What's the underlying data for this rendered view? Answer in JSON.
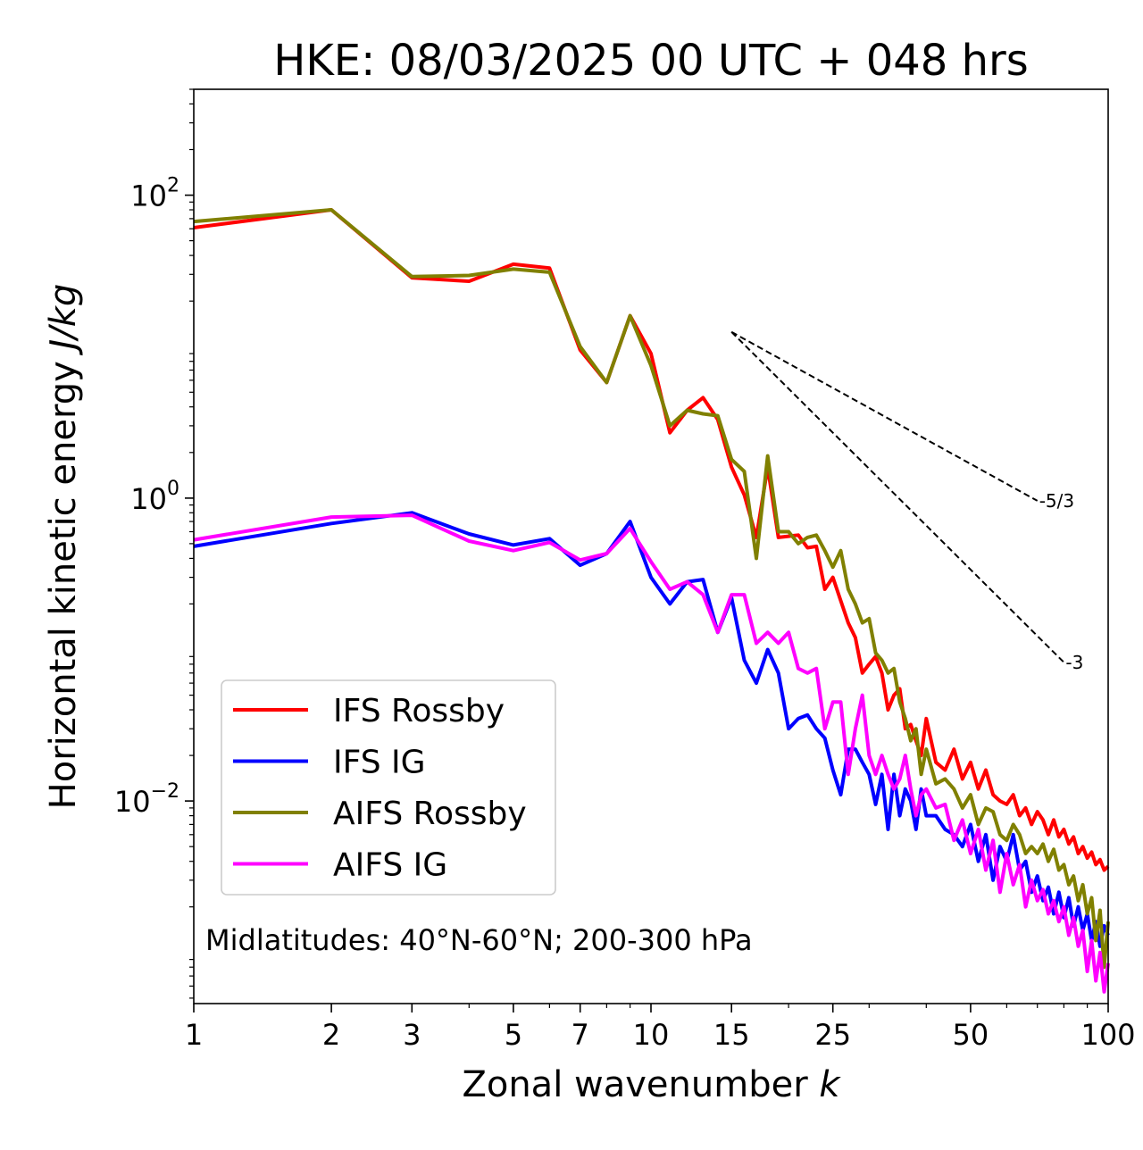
{
  "chart_data": {
    "type": "line",
    "title": "HKE: 08/03/2025 00 UTC + 048 hrs",
    "xlabel": "Zonal wavenumber ",
    "xlabel_var": "k",
    "ylabel": "Horizontal kinetic energy ",
    "ylabel_unit": "J/kg",
    "xscale": "log",
    "yscale": "log",
    "xlim": [
      1,
      100
    ],
    "ylim": [
      0.00046,
      500
    ],
    "x_ticks": [
      1,
      2,
      3,
      5,
      7,
      10,
      15,
      25,
      50,
      100
    ],
    "x_tick_labels": [
      "1",
      "2",
      "3",
      "5",
      "7",
      "10",
      "15",
      "25",
      "50",
      "100"
    ],
    "y_ticks": [
      0.01,
      1,
      100
    ],
    "y_tick_labels": [
      {
        "base": "10",
        "exp": "−2"
      },
      {
        "base": "10",
        "exp": "0"
      },
      {
        "base": "10",
        "exp": "2"
      }
    ],
    "legend_position": "lower-left",
    "annotation": "Midlatitudes: 40°N-60°N; 200-300 hPa",
    "reference_lines": [
      {
        "label": "-5/3",
        "slope": -1.6667,
        "x": [
          15,
          70
        ],
        "y0": 12.5
      },
      {
        "label": "-3",
        "slope": -3,
        "x": [
          15,
          80
        ],
        "y0": 12.5
      }
    ],
    "series": [
      {
        "name": "IFS Rossby",
        "color": "#ff0000",
        "x": [
          1,
          2,
          3,
          4,
          5,
          6,
          7,
          8,
          9,
          10,
          11,
          12,
          13,
          14,
          15,
          16,
          17,
          18,
          19,
          20,
          21,
          22,
          23,
          24,
          25,
          26,
          27,
          28,
          29,
          30,
          31,
          32,
          33,
          34,
          35,
          36,
          37,
          38,
          39,
          40,
          42,
          44,
          46,
          48,
          50,
          52,
          54,
          56,
          58,
          60,
          62,
          64,
          66,
          68,
          70,
          72,
          74,
          76,
          78,
          80,
          82,
          84,
          86,
          88,
          90,
          92,
          94,
          96,
          98,
          100
        ],
        "y": [
          61,
          80,
          28.5,
          27,
          35,
          33,
          9.5,
          5.8,
          16,
          9,
          2.7,
          3.8,
          4.6,
          3.3,
          1.6,
          1.05,
          0.55,
          1.6,
          0.55,
          0.56,
          0.57,
          0.47,
          0.48,
          0.25,
          0.3,
          0.21,
          0.15,
          0.12,
          0.07,
          0.08,
          0.09,
          0.07,
          0.04,
          0.05,
          0.055,
          0.03,
          0.032,
          0.025,
          0.02,
          0.035,
          0.018,
          0.016,
          0.022,
          0.014,
          0.018,
          0.012,
          0.016,
          0.011,
          0.01,
          0.0095,
          0.011,
          0.008,
          0.009,
          0.007,
          0.0085,
          0.0075,
          0.006,
          0.0075,
          0.0058,
          0.0065,
          0.0052,
          0.0058,
          0.0045,
          0.005,
          0.0042,
          0.0046,
          0.0038,
          0.0041,
          0.0035,
          0.0037
        ]
      },
      {
        "name": "IFS IG",
        "color": "#0000ff",
        "x": [
          1,
          2,
          3,
          4,
          5,
          6,
          7,
          8,
          9,
          10,
          11,
          12,
          13,
          14,
          15,
          16,
          17,
          18,
          19,
          20,
          21,
          22,
          23,
          24,
          25,
          26,
          27,
          28,
          29,
          30,
          31,
          32,
          33,
          34,
          35,
          36,
          37,
          38,
          39,
          40,
          42,
          44,
          46,
          48,
          50,
          52,
          54,
          56,
          58,
          60,
          62,
          64,
          66,
          68,
          70,
          72,
          74,
          76,
          78,
          80,
          82,
          84,
          86,
          88,
          90,
          92,
          94,
          96,
          98,
          100
        ],
        "y": [
          0.48,
          0.68,
          0.8,
          0.58,
          0.49,
          0.54,
          0.36,
          0.43,
          0.7,
          0.3,
          0.2,
          0.28,
          0.29,
          0.13,
          0.22,
          0.085,
          0.06,
          0.1,
          0.07,
          0.03,
          0.035,
          0.037,
          0.03,
          0.026,
          0.016,
          0.011,
          0.022,
          0.022,
          0.018,
          0.015,
          0.0095,
          0.015,
          0.0065,
          0.015,
          0.008,
          0.012,
          0.01,
          0.0065,
          0.012,
          0.008,
          0.008,
          0.0065,
          0.006,
          0.005,
          0.007,
          0.004,
          0.006,
          0.003,
          0.005,
          0.004,
          0.006,
          0.0035,
          0.004,
          0.0025,
          0.0032,
          0.0022,
          0.0027,
          0.0018,
          0.0025,
          0.0017,
          0.0023,
          0.0015,
          0.002,
          0.0014,
          0.0018,
          0.0012,
          0.0016,
          0.0011,
          0.0015,
          0.0013
        ]
      },
      {
        "name": "AIFS Rossby",
        "color": "#808000",
        "x": [
          1,
          2,
          3,
          4,
          5,
          6,
          7,
          8,
          9,
          10,
          11,
          12,
          13,
          14,
          15,
          16,
          17,
          18,
          19,
          20,
          21,
          22,
          23,
          24,
          25,
          26,
          27,
          28,
          29,
          30,
          31,
          32,
          33,
          34,
          35,
          36,
          37,
          38,
          39,
          40,
          42,
          44,
          46,
          48,
          50,
          52,
          54,
          56,
          58,
          60,
          62,
          64,
          66,
          68,
          70,
          72,
          74,
          76,
          78,
          80,
          82,
          84,
          86,
          88,
          90,
          92,
          94,
          96,
          98,
          100
        ],
        "y": [
          67,
          80,
          29,
          29.5,
          32.5,
          31,
          10,
          5.8,
          16,
          7.5,
          3,
          3.8,
          3.6,
          3.5,
          1.8,
          1.5,
          0.4,
          1.9,
          0.6,
          0.6,
          0.5,
          0.55,
          0.57,
          0.45,
          0.35,
          0.45,
          0.25,
          0.2,
          0.15,
          0.16,
          0.095,
          0.085,
          0.07,
          0.075,
          0.045,
          0.035,
          0.025,
          0.03,
          0.015,
          0.022,
          0.013,
          0.014,
          0.012,
          0.009,
          0.011,
          0.007,
          0.009,
          0.0085,
          0.006,
          0.0055,
          0.007,
          0.006,
          0.0045,
          0.005,
          0.0045,
          0.0052,
          0.004,
          0.0048,
          0.0035,
          0.0038,
          0.0028,
          0.0032,
          0.0022,
          0.0028,
          0.0018,
          0.0023,
          0.0012,
          0.0019,
          0.0008,
          0.0016
        ]
      },
      {
        "name": "AIFS IG",
        "color": "#ff00ff",
        "x": [
          1,
          2,
          3,
          4,
          5,
          6,
          7,
          8,
          9,
          10,
          11,
          12,
          13,
          14,
          15,
          16,
          17,
          18,
          19,
          20,
          21,
          22,
          23,
          24,
          25,
          26,
          27,
          28,
          29,
          30,
          31,
          32,
          33,
          34,
          35,
          36,
          37,
          38,
          39,
          40,
          42,
          44,
          46,
          48,
          50,
          52,
          54,
          56,
          58,
          60,
          62,
          64,
          66,
          68,
          70,
          72,
          74,
          76,
          78,
          80,
          82,
          84,
          86,
          88,
          90,
          92,
          94,
          96,
          98,
          100
        ],
        "y": [
          0.53,
          0.75,
          0.77,
          0.52,
          0.45,
          0.51,
          0.39,
          0.43,
          0.63,
          0.38,
          0.25,
          0.28,
          0.23,
          0.13,
          0.23,
          0.23,
          0.11,
          0.13,
          0.11,
          0.13,
          0.075,
          0.07,
          0.075,
          0.03,
          0.045,
          0.045,
          0.015,
          0.03,
          0.05,
          0.02,
          0.015,
          0.02,
          0.015,
          0.012,
          0.014,
          0.02,
          0.012,
          0.008,
          0.011,
          0.012,
          0.009,
          0.0095,
          0.0055,
          0.0075,
          0.0045,
          0.0065,
          0.0035,
          0.0055,
          0.0025,
          0.0045,
          0.0028,
          0.0038,
          0.002,
          0.003,
          0.0022,
          0.0026,
          0.0018,
          0.0022,
          0.0016,
          0.002,
          0.0013,
          0.0017,
          0.0011,
          0.0014,
          0.00075,
          0.0012,
          0.00065,
          0.001,
          0.00055,
          0.00085
        ]
      }
    ]
  }
}
